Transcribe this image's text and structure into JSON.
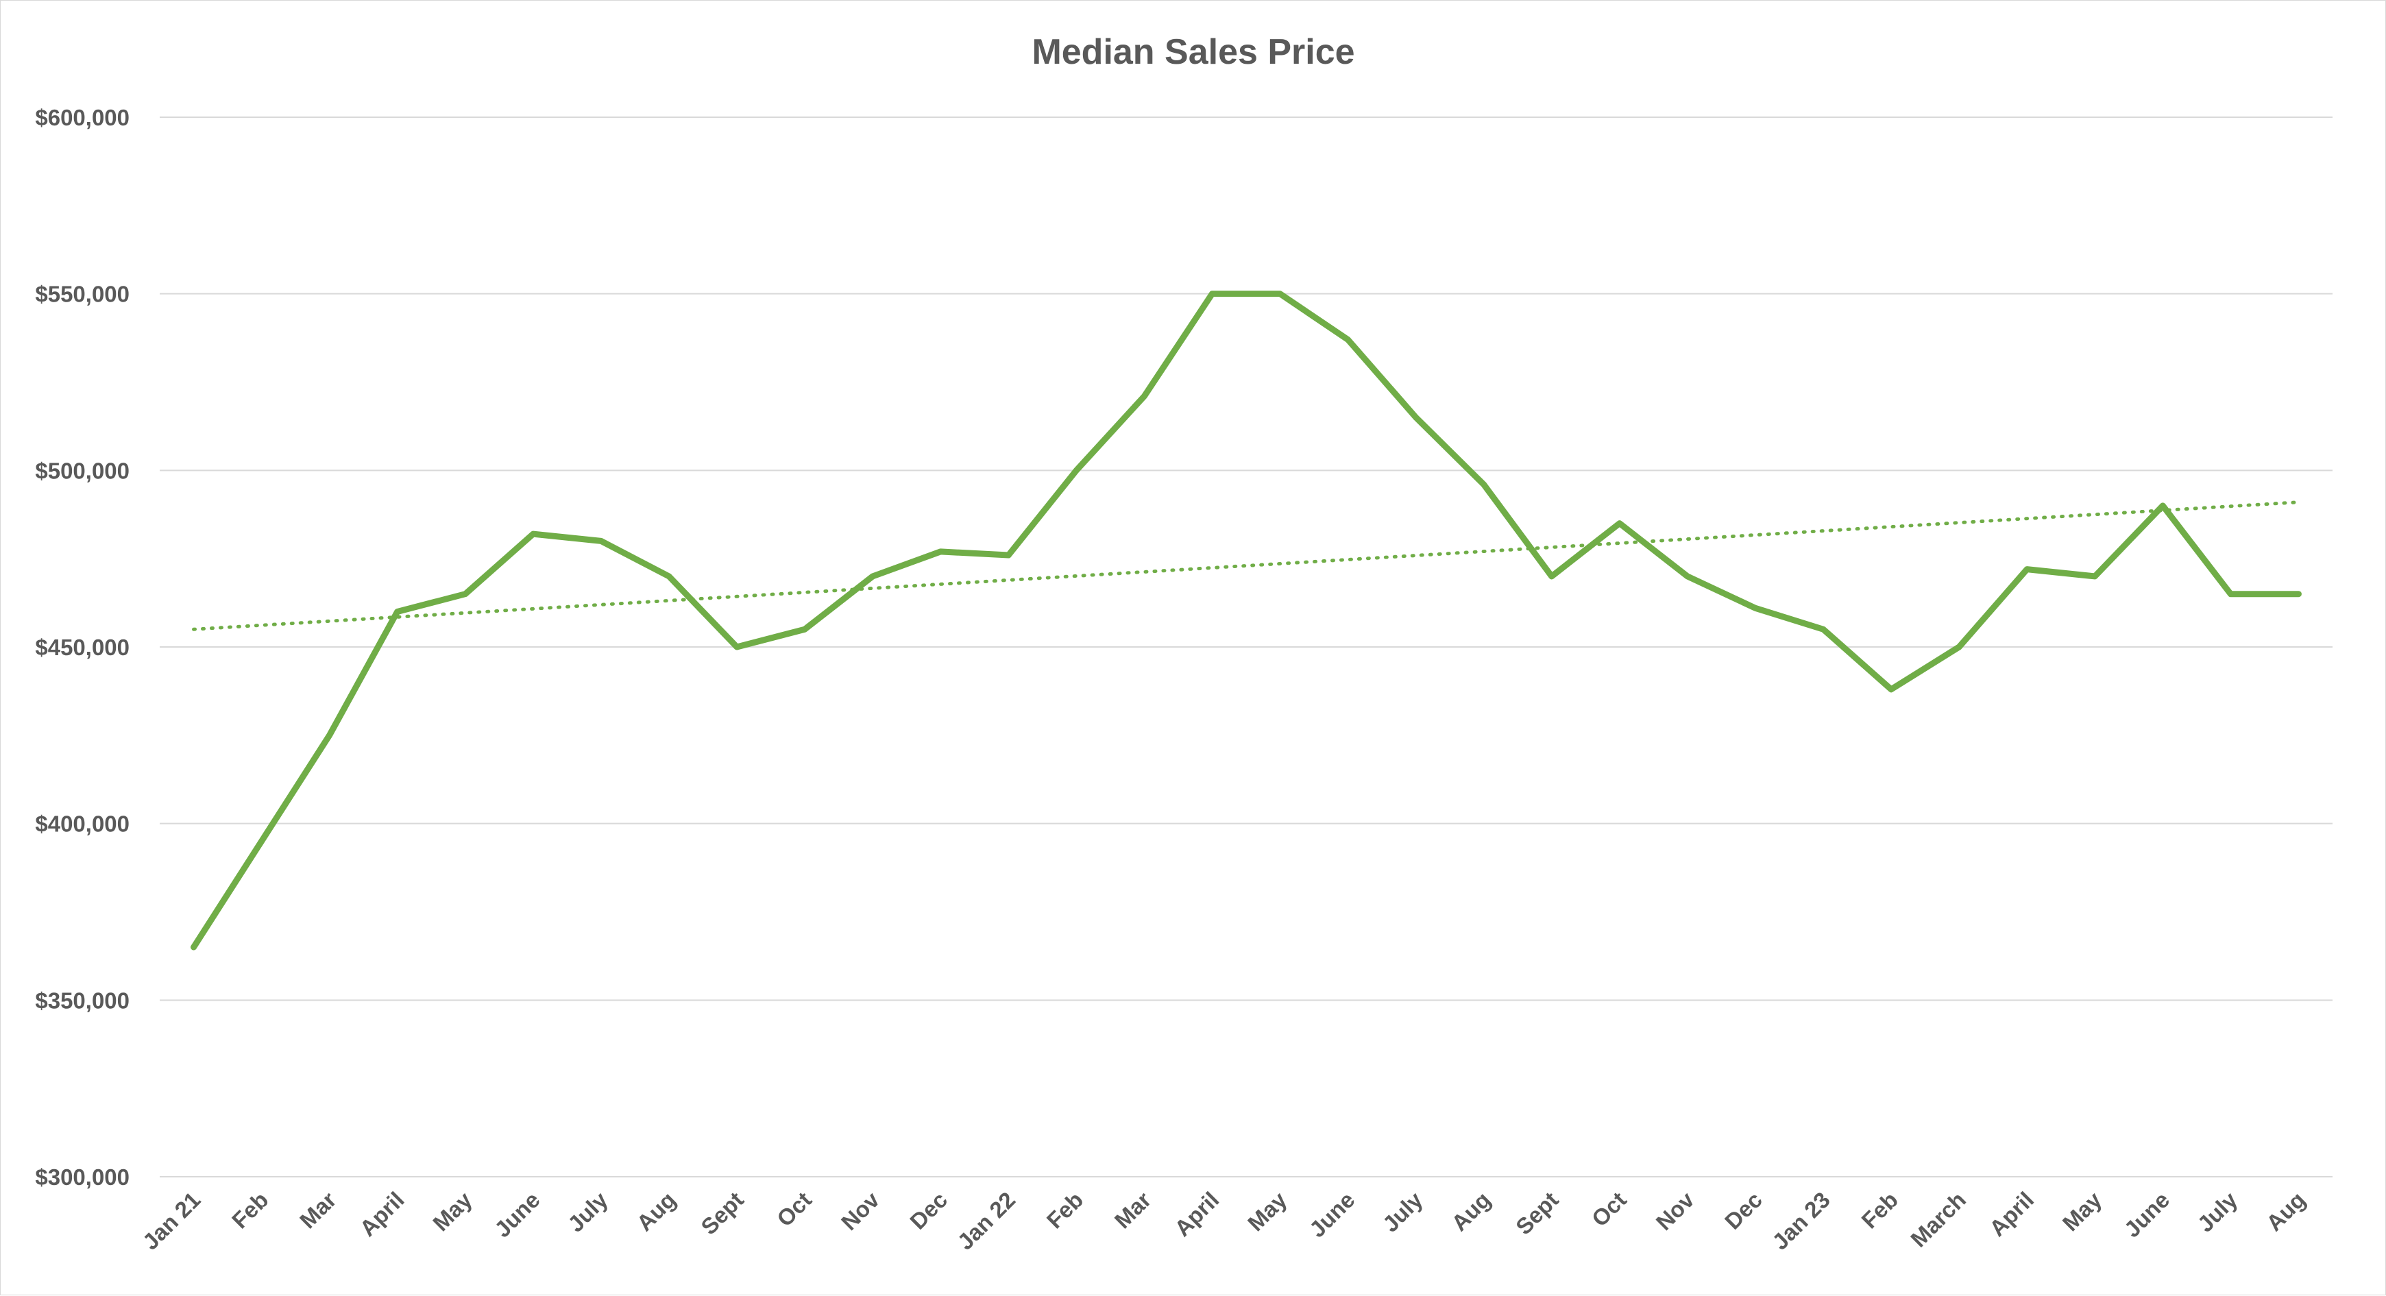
{
  "chart_data": {
    "type": "line",
    "title": "Median Sales Price",
    "xlabel": "",
    "ylabel": "",
    "ylim": [
      300000,
      600000
    ],
    "yticks": [
      300000,
      350000,
      400000,
      450000,
      500000,
      550000,
      600000
    ],
    "ytick_labels": [
      "$300,000",
      "$350,000",
      "$400,000",
      "$450,000",
      "$500,000",
      "$550,000",
      "$600,000"
    ],
    "grid": true,
    "legend": "none",
    "categories": [
      "Jan 21",
      "Feb",
      "Mar",
      "April",
      "May",
      "June",
      "July",
      "Aug",
      "Sept",
      "Oct",
      "Nov",
      "Dec",
      "Jan 22",
      "Feb",
      "Mar",
      "April",
      "May",
      "June",
      "July",
      "Aug",
      "Sept",
      "Oct",
      "Nov",
      "Dec",
      "Jan 23",
      "Feb",
      "March",
      "April",
      "May",
      "June",
      "July",
      "Aug"
    ],
    "series": [
      {
        "values": [
          365000,
          395000,
          425000,
          460000,
          465000,
          482000,
          480000,
          470000,
          450000,
          455000,
          470000,
          477000,
          476000,
          500000,
          521000,
          550000,
          550000,
          537000,
          515000,
          496000,
          470000,
          485000,
          470000,
          461000,
          455000,
          438000,
          450000,
          472000,
          470000,
          490000,
          465000,
          465000
        ],
        "color": "#70ad47"
      }
    ],
    "trendline": {
      "type": "linear",
      "start": 455000,
      "end": 491000,
      "color": "#70ad47",
      "style": "dotted"
    }
  }
}
